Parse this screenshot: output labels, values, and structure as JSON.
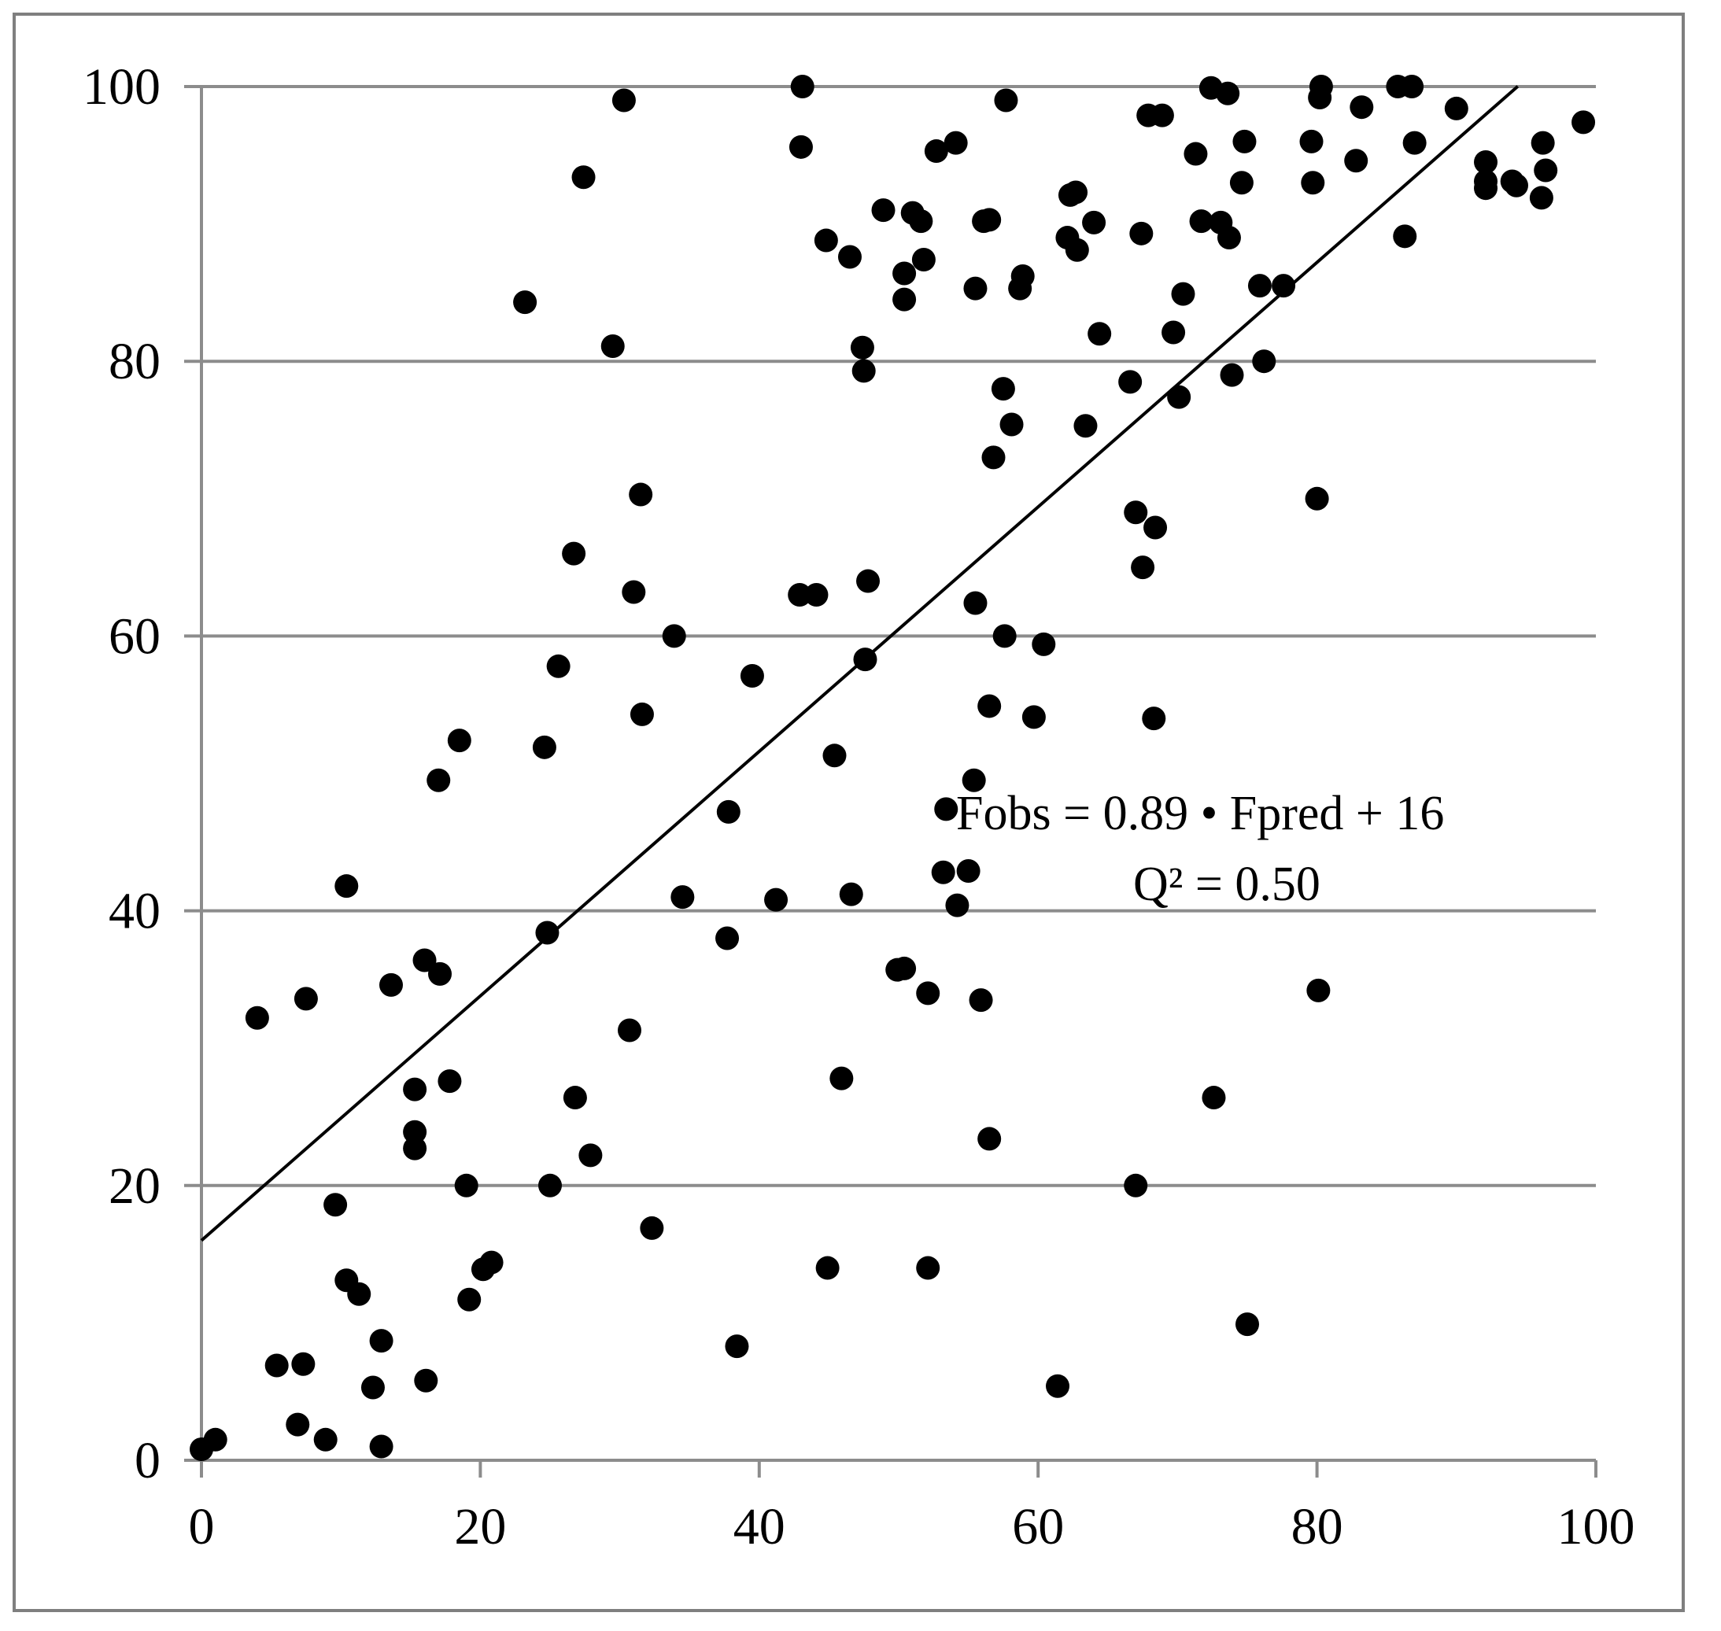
{
  "chart_data": {
    "type": "scatter",
    "title": "",
    "xlabel": "",
    "ylabel": "",
    "xlim": [
      0,
      100
    ],
    "ylim": [
      0,
      100
    ],
    "x_ticks": [
      "0",
      "20",
      "40",
      "60",
      "80",
      "100"
    ],
    "y_ticks": [
      "0",
      "20",
      "40",
      "60",
      "80",
      "100"
    ],
    "grid": "horizontal",
    "legend": "none",
    "colors": {
      "points": "#000000",
      "grid": "#8c8c8c",
      "axis": "#8c8c8c",
      "fit_line": "#000000"
    },
    "annotations": {
      "equation": "Fobs = 0.89 • Fpred + 16",
      "q2": "Q² = 0.50"
    },
    "fit_line": {
      "slope": 0.89,
      "intercept": 16,
      "x_range": [
        0,
        94.4
      ]
    },
    "points": [
      [
        0,
        0.8
      ],
      [
        1,
        1.5
      ],
      [
        4,
        32.2
      ],
      [
        5.4,
        6.9
      ],
      [
        7.3,
        7
      ],
      [
        6.9,
        2.6
      ],
      [
        7.5,
        33.6
      ],
      [
        8.9,
        1.5
      ],
      [
        9.6,
        18.6
      ],
      [
        10.4,
        13.1
      ],
      [
        10.4,
        41.8
      ],
      [
        11.3,
        12.1
      ],
      [
        12.3,
        5.3
      ],
      [
        12.9,
        1
      ],
      [
        12.9,
        8.7
      ],
      [
        13.6,
        34.6
      ],
      [
        15.3,
        27
      ],
      [
        15.3,
        23.9
      ],
      [
        15.3,
        22.7
      ],
      [
        16,
        36.4
      ],
      [
        16.1,
        5.8
      ],
      [
        17.1,
        35.4
      ],
      [
        17,
        49.5
      ],
      [
        17.8,
        27.6
      ],
      [
        18.5,
        52.4
      ],
      [
        19,
        20
      ],
      [
        19.2,
        11.7
      ],
      [
        20.2,
        13.9
      ],
      [
        20.8,
        14.4
      ],
      [
        23.2,
        84.3
      ],
      [
        24.6,
        51.9
      ],
      [
        24.8,
        38.4
      ],
      [
        25,
        20
      ],
      [
        25.6,
        57.8
      ],
      [
        26.7,
        66
      ],
      [
        26.8,
        26.4
      ],
      [
        27.4,
        93.4
      ],
      [
        27.9,
        22.2
      ],
      [
        29.5,
        81.1
      ],
      [
        30.3,
        99
      ],
      [
        30.7,
        31.3
      ],
      [
        31,
        63.2
      ],
      [
        31.5,
        70.3
      ],
      [
        31.6,
        54.3
      ],
      [
        32.3,
        16.9
      ],
      [
        33.9,
        60
      ],
      [
        34.5,
        41
      ],
      [
        37.8,
        47.2
      ],
      [
        37.7,
        38
      ],
      [
        38.4,
        8.3
      ],
      [
        39.5,
        57.1
      ],
      [
        41.2,
        40.8
      ],
      [
        42.9,
        63
      ],
      [
        43.1,
        100
      ],
      [
        43,
        95.6
      ],
      [
        44.1,
        63
      ],
      [
        44.8,
        88.8
      ],
      [
        44.9,
        14
      ],
      [
        45.4,
        51.3
      ],
      [
        45.9,
        27.8
      ],
      [
        46.5,
        87.6
      ],
      [
        46.6,
        41.2
      ],
      [
        47.4,
        81
      ],
      [
        47.5,
        79.3
      ],
      [
        47.6,
        58.3
      ],
      [
        47.8,
        64
      ],
      [
        48.9,
        91
      ],
      [
        49.9,
        35.7
      ],
      [
        50.4,
        35.8
      ],
      [
        50.4,
        86.4
      ],
      [
        50.4,
        84.5
      ],
      [
        51,
        90.8
      ],
      [
        51.6,
        90.2
      ],
      [
        51.8,
        87.4
      ],
      [
        52.1,
        14
      ],
      [
        52.1,
        34
      ],
      [
        52.7,
        95.3
      ],
      [
        53.2,
        42.8
      ],
      [
        53.4,
        47.4
      ],
      [
        54.1,
        95.9
      ],
      [
        54.2,
        40.4
      ],
      [
        55,
        42.9
      ],
      [
        55.4,
        49.5
      ],
      [
        55.5,
        62.4
      ],
      [
        55.5,
        85.3
      ],
      [
        55.9,
        33.5
      ],
      [
        56.1,
        90.2
      ],
      [
        56.5,
        90.3
      ],
      [
        56.5,
        23.4
      ],
      [
        56.5,
        54.9
      ],
      [
        56.8,
        73
      ],
      [
        57.5,
        78
      ],
      [
        57.6,
        60
      ],
      [
        57.7,
        99
      ],
      [
        58.1,
        75.4
      ],
      [
        58.7,
        85.3
      ],
      [
        58.9,
        86.2
      ],
      [
        59.7,
        54.1
      ],
      [
        60.4,
        59.4
      ],
      [
        61.4,
        5.4
      ],
      [
        62.1,
        89
      ],
      [
        62.3,
        92.1
      ],
      [
        62.8,
        88.1
      ],
      [
        62.7,
        92.3
      ],
      [
        63.4,
        75.3
      ],
      [
        64,
        90.1
      ],
      [
        64.4,
        82
      ],
      [
        66.6,
        78.5
      ],
      [
        67,
        69
      ],
      [
        67,
        20
      ],
      [
        67.4,
        89.3
      ],
      [
        67.5,
        65
      ],
      [
        67.9,
        97.9
      ],
      [
        68.3,
        54
      ],
      [
        68.4,
        67.9
      ],
      [
        68.9,
        97.9
      ],
      [
        69.7,
        82.1
      ],
      [
        70.1,
        77.4
      ],
      [
        70.4,
        84.9
      ],
      [
        71.3,
        95.1
      ],
      [
        71.7,
        90.2
      ],
      [
        72.4,
        99.9
      ],
      [
        72.6,
        26.4
      ],
      [
        73.1,
        90.1
      ],
      [
        73.6,
        99.5
      ],
      [
        73.7,
        89
      ],
      [
        73.9,
        79
      ],
      [
        74.6,
        93
      ],
      [
        74.8,
        96
      ],
      [
        75,
        9.9
      ],
      [
        75.9,
        85.5
      ],
      [
        76.2,
        80
      ],
      [
        77.6,
        85.5
      ],
      [
        79.6,
        96
      ],
      [
        79.7,
        93
      ],
      [
        80,
        70
      ],
      [
        80.1,
        34.2
      ],
      [
        80.2,
        99.2
      ],
      [
        80.3,
        100
      ],
      [
        82.8,
        94.6
      ],
      [
        83.2,
        98.5
      ],
      [
        85.8,
        100
      ],
      [
        86.3,
        89.1
      ],
      [
        86.8,
        100
      ],
      [
        87,
        95.9
      ],
      [
        90,
        98.4
      ],
      [
        92.1,
        94.5
      ],
      [
        92.1,
        93.1
      ],
      [
        92.1,
        92.6
      ],
      [
        94,
        93.1
      ],
      [
        94.3,
        92.8
      ],
      [
        96.1,
        91.9
      ],
      [
        96.2,
        95.9
      ],
      [
        96.4,
        93.9
      ],
      [
        99.1,
        97.4
      ]
    ]
  }
}
